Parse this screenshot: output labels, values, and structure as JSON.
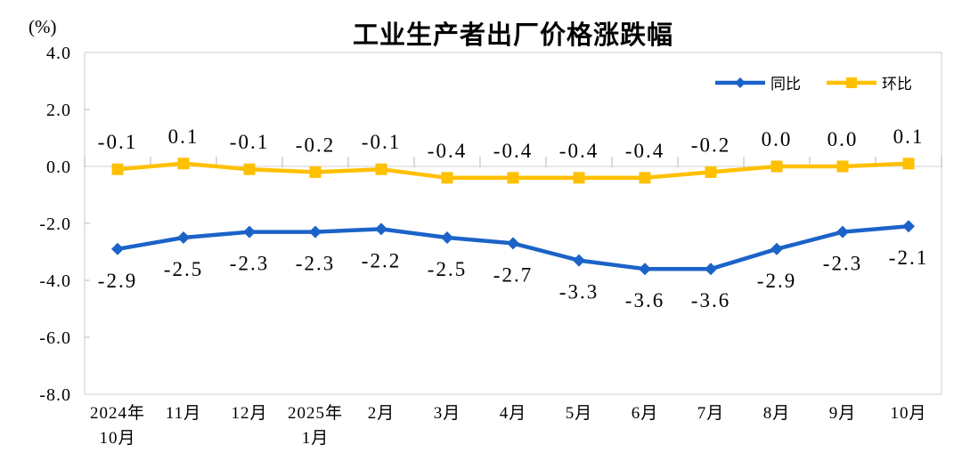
{
  "chart_title": "工业生产者出厂价格涨跌幅",
  "unit_label": "(%)",
  "colors": {
    "yoy_blue": "#1b63c8",
    "mom_yellow": "#ffc000",
    "grid": "#d9d9d9",
    "tick": "#c3c3c3",
    "text": "#000000"
  },
  "legend": {
    "position": "top-right",
    "items": [
      {
        "id": "yoy",
        "label": "同比"
      },
      {
        "id": "mom",
        "label": "环比"
      }
    ]
  },
  "chart_data": {
    "type": "line",
    "title": "工业生产者出厂价格涨跌幅",
    "ylabel": "(%)",
    "xlabel": "",
    "ylim": [
      -8.0,
      4.0
    ],
    "ytick_step": 2.0,
    "ytick_labels": [
      "4.0",
      "2.0",
      "0.0",
      "-2.0",
      "-4.0",
      "-6.0",
      "-8.0"
    ],
    "grid": "zero-line-only",
    "legend_position": "top-right",
    "categories": [
      [
        "2024年",
        "10月"
      ],
      [
        "11月"
      ],
      [
        "12月"
      ],
      [
        "2025年",
        "1月"
      ],
      [
        "2月"
      ],
      [
        "3月"
      ],
      [
        "4月"
      ],
      [
        "5月"
      ],
      [
        "6月"
      ],
      [
        "7月"
      ],
      [
        "8月"
      ],
      [
        "9月"
      ],
      [
        "10月"
      ]
    ],
    "series": [
      {
        "id": "yoy",
        "name": "同比",
        "color": "#1b63c8",
        "marker": "diamond",
        "label_position": "below",
        "values": [
          -2.9,
          -2.5,
          -2.3,
          -2.3,
          -2.2,
          -2.5,
          -2.7,
          -3.3,
          -3.6,
          -3.6,
          -2.9,
          -2.3,
          -2.1
        ]
      },
      {
        "id": "mom",
        "name": "环比",
        "color": "#ffc000",
        "marker": "square",
        "label_position": "above",
        "values": [
          -0.1,
          0.1,
          -0.1,
          -0.2,
          -0.1,
          -0.4,
          -0.4,
          -0.4,
          -0.4,
          -0.2,
          0.0,
          0.0,
          0.1
        ]
      }
    ]
  }
}
